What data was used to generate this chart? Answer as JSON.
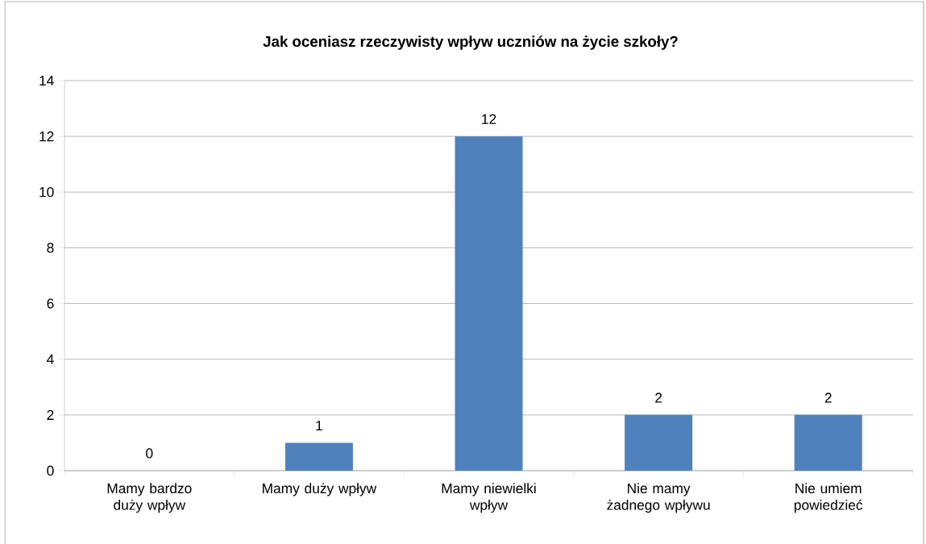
{
  "chart_data": {
    "type": "bar",
    "title": "Jak oceniasz rzeczywisty wpływ uczniów na życie szkoły?",
    "categories": [
      "Mamy bardzo duży wpływ",
      "Mamy duży wpływ",
      "Mamy niewielki wpływ",
      "Nie mamy żadnego wpływu",
      "Nie umiem powiedzieć"
    ],
    "values": [
      0,
      1,
      12,
      2,
      2
    ],
    "color": "#4f81bd",
    "ylim": [
      0,
      14
    ],
    "yticks": [
      0,
      2,
      4,
      6,
      8,
      10,
      12,
      14
    ],
    "grid": "y",
    "data_labels": true
  }
}
